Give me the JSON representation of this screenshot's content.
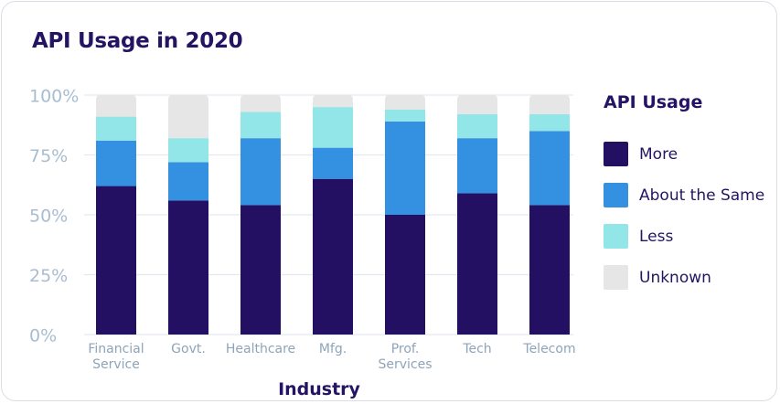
{
  "chart_data": {
    "type": "bar",
    "stacked": true,
    "title": "API Usage in 2020",
    "xlabel": "Industry",
    "ylabel": "",
    "ylim": [
      0,
      100
    ],
    "y_ticks": [
      "0%",
      "25%",
      "50%",
      "75%",
      "100%"
    ],
    "categories": [
      [
        "Financial",
        "Service"
      ],
      [
        "Govt."
      ],
      [
        "Healthcare"
      ],
      [
        "Mfg."
      ],
      [
        "Prof.",
        "Services"
      ],
      [
        "Tech"
      ],
      [
        "Telecom"
      ]
    ],
    "legend_title": "API Usage",
    "legend_position": "right",
    "grid": true,
    "series": [
      {
        "name": "More",
        "color": "#241063",
        "values": [
          62,
          56,
          54,
          65,
          50,
          59,
          54
        ]
      },
      {
        "name": "About the Same",
        "color": "#3490e0",
        "values": [
          19,
          16,
          28,
          13,
          39,
          23,
          31
        ]
      },
      {
        "name": "Less",
        "color": "#93e6e8",
        "values": [
          10,
          10,
          11,
          17,
          5,
          10,
          7
        ]
      },
      {
        "name": "Unknown",
        "color": "#e6e6e6",
        "values": [
          9,
          18,
          7,
          5,
          6,
          8,
          8
        ]
      }
    ]
  }
}
